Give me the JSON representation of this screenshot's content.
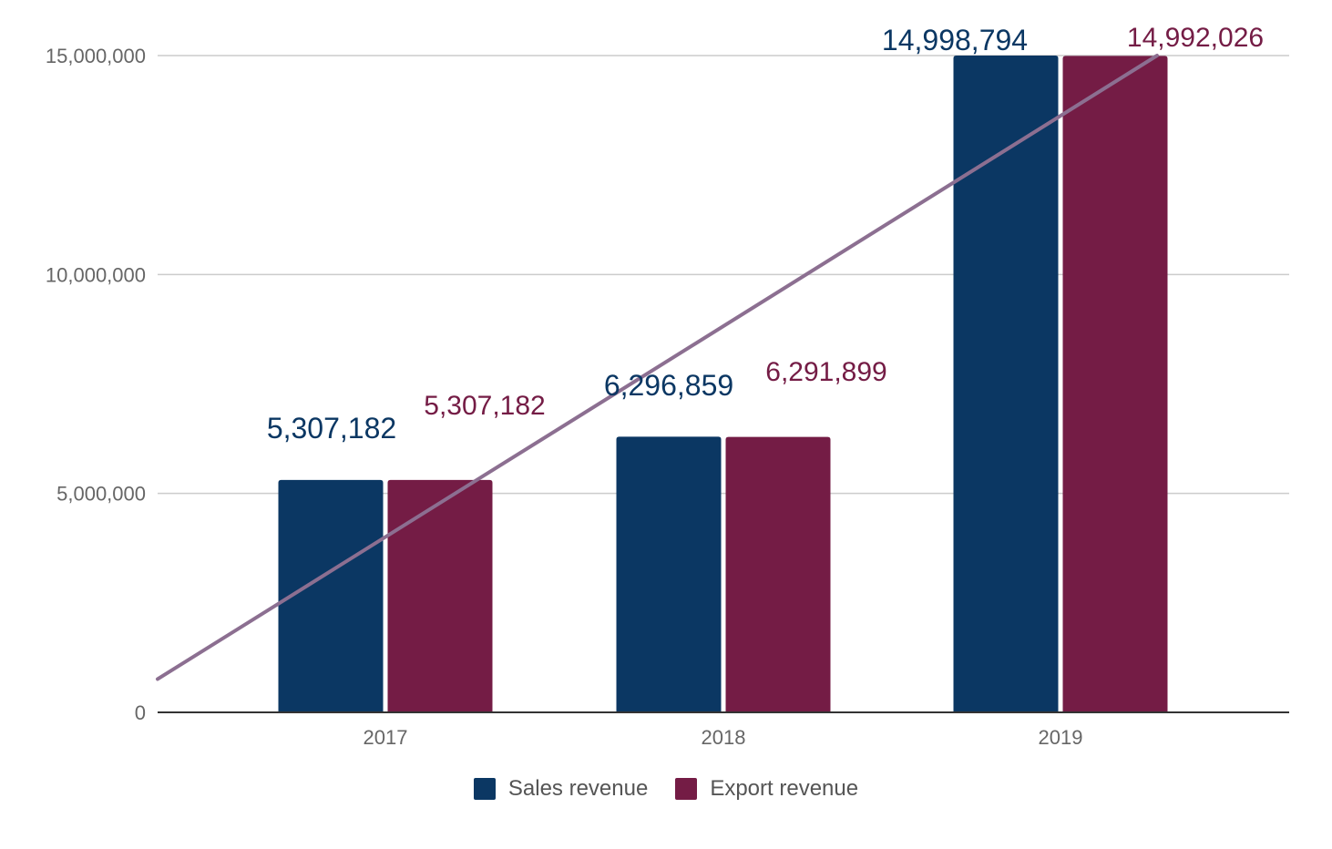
{
  "chart_data": {
    "type": "bar",
    "title": "",
    "xlabel": "",
    "ylabel": "",
    "categories": [
      "2017",
      "2018",
      "2019"
    ],
    "series": [
      {
        "name": "Sales revenue",
        "color": "#0b3763",
        "values": [
          5307182,
          6296859,
          14998794
        ],
        "labels": [
          "5,307,182",
          "6,296,859",
          "14,998,794"
        ]
      },
      {
        "name": "Export revenue",
        "color": "#741c45",
        "values": [
          5307182,
          6291899,
          14992026
        ],
        "labels": [
          "5,307,182",
          "6,291,899",
          "14,992,026"
        ]
      }
    ],
    "ylim": [
      0,
      15000000
    ],
    "yticks": [
      0,
      5000000,
      10000000,
      15000000
    ],
    "ytick_labels": [
      "0",
      "5,000,000",
      "10,000,000",
      "15,000,000"
    ],
    "gridlines": true,
    "legend_position": "bottom",
    "trendline": {
      "type": "linear",
      "color": "#8c6f91",
      "y_at_start": 760000,
      "y_at_end": 15000000
    }
  }
}
